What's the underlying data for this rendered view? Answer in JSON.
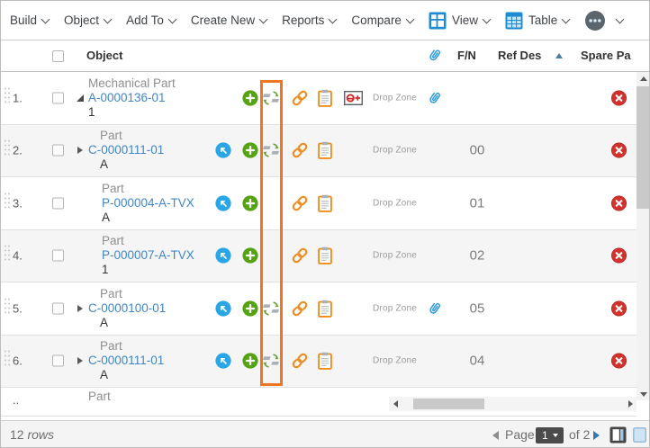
{
  "toolbar": {
    "items": [
      {
        "label": "Build"
      },
      {
        "label": "Object"
      },
      {
        "label": "Add To"
      },
      {
        "label": "Create New"
      },
      {
        "label": "Reports"
      },
      {
        "label": "Compare"
      },
      {
        "label": "View",
        "icon": "view-layout-icon"
      },
      {
        "label": "Table",
        "icon": "table-icon"
      },
      {
        "label": "",
        "icon": "more-options-icon"
      }
    ]
  },
  "table": {
    "columns": {
      "object": "Object",
      "attachment_column_icon": "paperclip-icon",
      "fn": "F/N",
      "ref_des": "Ref Des",
      "spare_part": "Spare Pa",
      "sorted_column": "Ref Des",
      "sort_direction": "ascending"
    },
    "labels": {
      "drop_zone": "Drop Zone"
    },
    "icon_names": [
      "goto-item-icon",
      "add-item-icon",
      "sync-replace-icon",
      "link-icon",
      "clipboard-icon",
      "viewer-icon",
      "paperclip-icon",
      "remove-icon"
    ],
    "rows": [
      {
        "num": "1.",
        "type": "Mechanical Part",
        "item": "A-0000136-01",
        "rev": "1",
        "tree": "expanded",
        "goto": false,
        "add": true,
        "sync": true,
        "link": true,
        "clipboard": true,
        "viewer": true,
        "drop_zone": true,
        "attachment": true,
        "fn": "",
        "remove": true
      },
      {
        "num": "2.",
        "type": "Part",
        "item": "C-0000111-01",
        "rev": "A",
        "tree": "collapsed",
        "goto": true,
        "add": true,
        "sync": true,
        "link": true,
        "clipboard": true,
        "viewer": false,
        "drop_zone": true,
        "attachment": false,
        "fn": "00",
        "remove": true
      },
      {
        "num": "3.",
        "type": "Part",
        "item": "P-000004-A-TVX",
        "rev": "A",
        "tree": "leaf",
        "goto": true,
        "add": true,
        "sync": false,
        "link": true,
        "clipboard": true,
        "viewer": false,
        "drop_zone": true,
        "attachment": false,
        "fn": "01",
        "remove": true
      },
      {
        "num": "4.",
        "type": "Part",
        "item": "P-000007-A-TVX",
        "rev": "1",
        "tree": "leaf",
        "goto": true,
        "add": true,
        "sync": false,
        "link": true,
        "clipboard": true,
        "viewer": false,
        "drop_zone": true,
        "attachment": false,
        "fn": "02",
        "remove": true
      },
      {
        "num": "5.",
        "type": "Part",
        "item": "C-0000100-01",
        "rev": "A",
        "tree": "collapsed",
        "goto": true,
        "add": true,
        "sync": true,
        "link": true,
        "clipboard": true,
        "viewer": false,
        "drop_zone": true,
        "attachment": true,
        "fn": "05",
        "remove": true
      },
      {
        "num": "6.",
        "type": "Part",
        "item": "C-0000111-01",
        "rev": "A",
        "tree": "collapsed",
        "goto": true,
        "add": true,
        "sync": true,
        "link": true,
        "clipboard": true,
        "viewer": false,
        "drop_zone": true,
        "attachment": false,
        "fn": "04",
        "remove": true
      },
      {
        "num": "..",
        "type": "Part",
        "item": "",
        "rev": "",
        "tree": "partial",
        "goto": false,
        "add": false,
        "sync": false,
        "link": false,
        "clipboard": false,
        "viewer": false,
        "drop_zone": false,
        "attachment": false,
        "fn": "",
        "remove": false
      }
    ]
  },
  "footer": {
    "row_count": "12",
    "rows_label": "rows",
    "page_label": "Page",
    "page_value": "1",
    "page_of": "of",
    "page_total": "2"
  },
  "annotation": {
    "highlight_color": "#ee7623"
  },
  "colors": {
    "link_blue": "#4187c7",
    "accent_green": "#55a313",
    "accent_orange": "#f08c1f",
    "accent_blue": "#2aa5e6",
    "danger_red": "#d3312c"
  }
}
